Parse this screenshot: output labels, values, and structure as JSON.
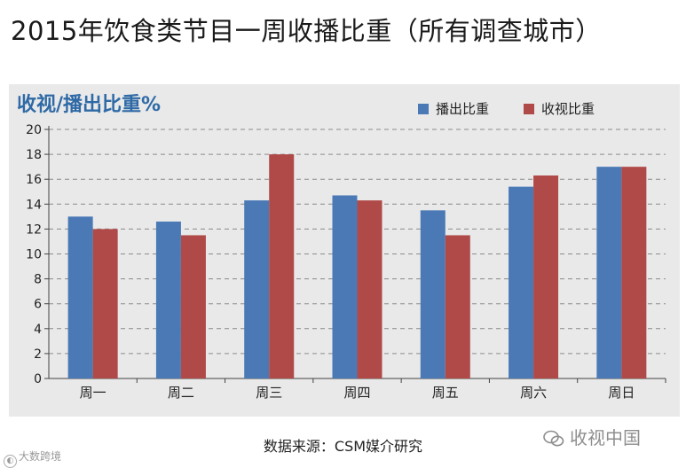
{
  "title": "2015年饮食类节目一周收播比重（所有调查城市）",
  "source": "数据来源：CSM媒介研究",
  "watermark_left": "大数跨境",
  "watermark_right": "收视中国",
  "chart_data": {
    "type": "bar",
    "title": "收视/播出比重%",
    "xlabel": "",
    "ylabel": "",
    "categories": [
      "周一",
      "周二",
      "周三",
      "周四",
      "周五",
      "周六",
      "周日"
    ],
    "series": [
      {
        "name": "播出比重",
        "color": "#4a79b6",
        "values": [
          13.0,
          12.6,
          14.3,
          14.7,
          13.5,
          15.4,
          17.0
        ]
      },
      {
        "name": "收视比重",
        "color": "#b04a48",
        "values": [
          12.0,
          11.5,
          18.0,
          14.3,
          11.5,
          16.3,
          17.0
        ]
      }
    ],
    "ylim": [
      0,
      20
    ],
    "yticks": [
      0,
      2,
      4,
      6,
      8,
      10,
      12,
      14,
      16,
      18,
      20
    ],
    "grid": true,
    "legend": "top-right"
  }
}
